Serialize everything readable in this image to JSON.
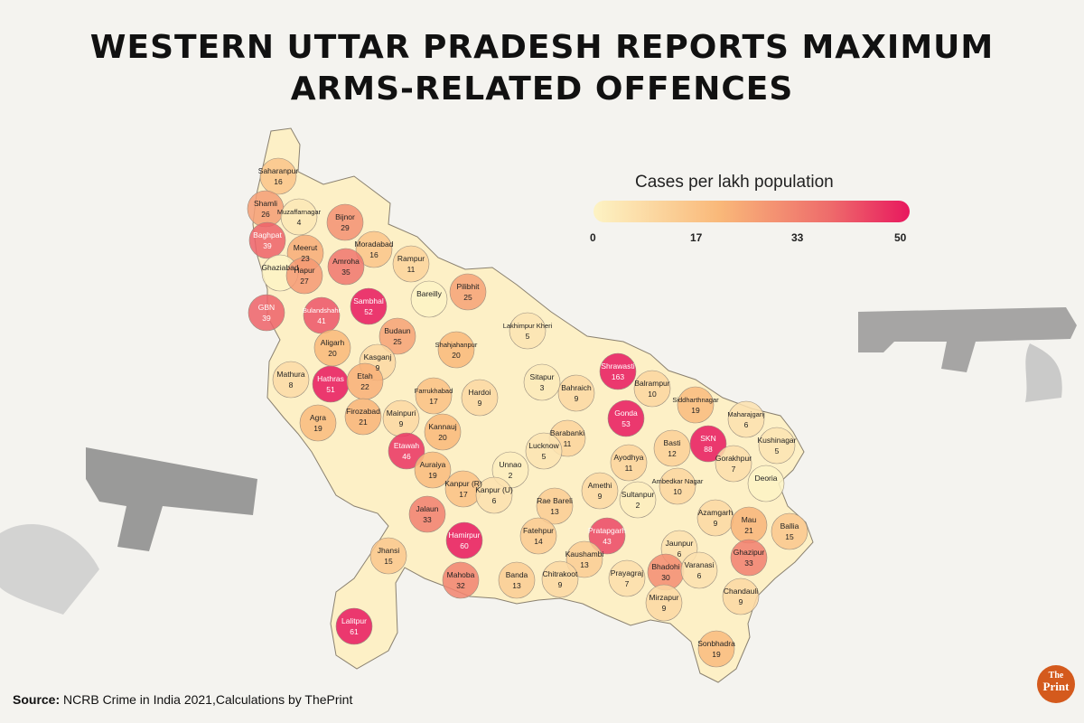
{
  "title_line1": "WESTERN UTTAR PRADESH REPORTS MAXIMUM",
  "title_line2": "ARMS-RELATED OFFENCES",
  "legend": {
    "title": "Cases per lakh population",
    "ticks": [
      "0",
      "17",
      "33",
      "50"
    ],
    "min": 0,
    "max": 50,
    "colors": [
      "#fdf3c4",
      "#f9b879",
      "#ee6b6b",
      "#e8185e"
    ]
  },
  "source_label": "Source:",
  "source_text": " NCRB Crime in India 2021,Calculations by ThePrint",
  "logo": {
    "line1": "The",
    "line2": "Print"
  },
  "icons": [
    "pistol-icon",
    "pistol-icon",
    "pistol-icon"
  ],
  "map_data": {
    "districts": [
      {
        "name": "Saharanpur",
        "value": "16"
      },
      {
        "name": "Shamli",
        "value": "26"
      },
      {
        "name": "Muzaffarnagar",
        "value": "4"
      },
      {
        "name": "Bijnor",
        "value": "29"
      },
      {
        "name": "Baghpat",
        "value": "39"
      },
      {
        "name": "Meerut",
        "value": "23"
      },
      {
        "name": "Ghaziabad",
        "value": ""
      },
      {
        "name": "Moradabad",
        "value": "16"
      },
      {
        "name": "Rampur",
        "value": "11"
      },
      {
        "name": "Hapur",
        "value": "27"
      },
      {
        "name": "Amroha",
        "value": "35"
      },
      {
        "name": "GBN",
        "value": "39"
      },
      {
        "name": "Bulandshahr",
        "value": "41"
      },
      {
        "name": "Sambhal",
        "value": "52"
      },
      {
        "name": "Bareilly",
        "value": ""
      },
      {
        "name": "Pilibhit",
        "value": "25"
      },
      {
        "name": "Lakhimpur Kheri",
        "value": "5"
      },
      {
        "name": "Aligarh",
        "value": "20"
      },
      {
        "name": "Budaun",
        "value": "25"
      },
      {
        "name": "Shahjahanpur",
        "value": "20"
      },
      {
        "name": "Mathura",
        "value": "8"
      },
      {
        "name": "Hathras",
        "value": "51"
      },
      {
        "name": "Kasganj",
        "value": "9"
      },
      {
        "name": "Etah",
        "value": "22"
      },
      {
        "name": "Farrukhabad",
        "value": "17"
      },
      {
        "name": "Hardoi",
        "value": "9"
      },
      {
        "name": "Sitapur",
        "value": "3"
      },
      {
        "name": "Shrawasti",
        "value": "163"
      },
      {
        "name": "Bahraich",
        "value": "9"
      },
      {
        "name": "Balrampur",
        "value": "10"
      },
      {
        "name": "Siddharthnagar",
        "value": "19"
      },
      {
        "name": "Maharajganj",
        "value": "6"
      },
      {
        "name": "Agra",
        "value": "19"
      },
      {
        "name": "Firozabad",
        "value": "21"
      },
      {
        "name": "Mainpuri",
        "value": "9"
      },
      {
        "name": "Kannauj",
        "value": "20"
      },
      {
        "name": "Gonda",
        "value": "53"
      },
      {
        "name": "Barabanki",
        "value": "11"
      },
      {
        "name": "Lucknow",
        "value": "5"
      },
      {
        "name": "Basti",
        "value": "12"
      },
      {
        "name": "SKN",
        "value": "88"
      },
      {
        "name": "Kushinagar",
        "value": "5"
      },
      {
        "name": "Etawah",
        "value": "46"
      },
      {
        "name": "Auraiya",
        "value": "19"
      },
      {
        "name": "Unnao",
        "value": "2"
      },
      {
        "name": "Ayodhya",
        "value": "11"
      },
      {
        "name": "Gorakhpur",
        "value": "7"
      },
      {
        "name": "Kanpur (R)",
        "value": "17"
      },
      {
        "name": "Kanpur (U)",
        "value": "6"
      },
      {
        "name": "Amethi",
        "value": "9"
      },
      {
        "name": "Ambedkar Nagar",
        "value": "10"
      },
      {
        "name": "Deoria",
        "value": ""
      },
      {
        "name": "Jalaun",
        "value": "33"
      },
      {
        "name": "Rae Bareli",
        "value": "13"
      },
      {
        "name": "Sultanpur",
        "value": "2"
      },
      {
        "name": "Azamgarh",
        "value": "9"
      },
      {
        "name": "Mau",
        "value": "21"
      },
      {
        "name": "Ballia",
        "value": "15"
      },
      {
        "name": "Hamirpur",
        "value": "60"
      },
      {
        "name": "Fatehpur",
        "value": "14"
      },
      {
        "name": "Pratapgarh",
        "value": "43"
      },
      {
        "name": "Jaunpur",
        "value": "6"
      },
      {
        "name": "Ghazipur",
        "value": "33"
      },
      {
        "name": "Jhansi",
        "value": "15"
      },
      {
        "name": "Kaushambi",
        "value": "13"
      },
      {
        "name": "Mahoba",
        "value": "32"
      },
      {
        "name": "Banda",
        "value": "13"
      },
      {
        "name": "Chitrakoot",
        "value": "9"
      },
      {
        "name": "Prayagraj",
        "value": "7"
      },
      {
        "name": "Bhadohi",
        "value": "30"
      },
      {
        "name": "Varanasi",
        "value": "6"
      },
      {
        "name": "Chandauli",
        "value": "9"
      },
      {
        "name": "Mirzapur",
        "value": "9"
      },
      {
        "name": "Lalitpur",
        "value": "61"
      },
      {
        "name": "Sonbhadra",
        "value": "19"
      }
    ]
  }
}
